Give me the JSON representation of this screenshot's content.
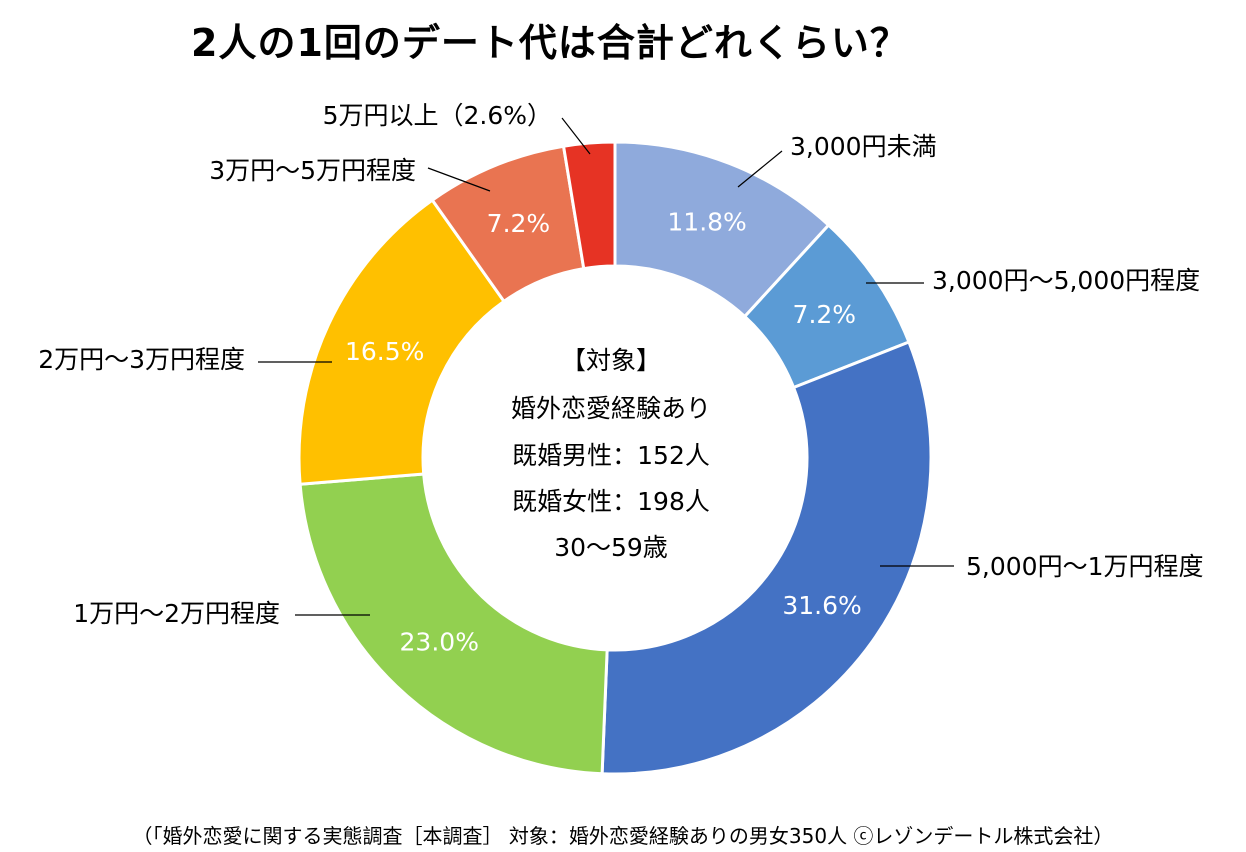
{
  "chart_data": {
    "type": "pie",
    "style": "donut",
    "title": "2人の1回のデート代は合計どれくらい？",
    "slices": [
      {
        "label": "3,000円未満",
        "value": 11.8,
        "value_label": "11.8%",
        "color": "#8faadc"
      },
      {
        "label": "3,000円～5,000円程度",
        "value": 7.2,
        "value_label": "7.2%",
        "color": "#5b9bd5"
      },
      {
        "label": "5,000円～1万円程度",
        "value": 31.6,
        "value_label": "31.6%",
        "color": "#4472c4"
      },
      {
        "label": "1万円～2万円程度",
        "value": 23.0,
        "value_label": "23.0%",
        "color": "#92d050"
      },
      {
        "label": "2万円～3万円程度",
        "value": 16.5,
        "value_label": "16.5%",
        "color": "#ffc000"
      },
      {
        "label": "3万円～5万円程度",
        "value": 7.2,
        "value_label": "7.2%",
        "color": "#e97451"
      },
      {
        "label": "5万円以上（2.6%）",
        "value": 2.6,
        "value_label": "",
        "color": "#e63324"
      }
    ],
    "center_text": [
      "【対象】",
      "婚外恋愛経験あり",
      "既婚男性：152人",
      "既婚女性：198人",
      "30～59歳"
    ]
  },
  "footer": "（「婚外恋愛に関する実態調査［本調査］ 対象：婚外恋愛経験ありの男女350人 ⓒレゾンデートル株式会社）"
}
